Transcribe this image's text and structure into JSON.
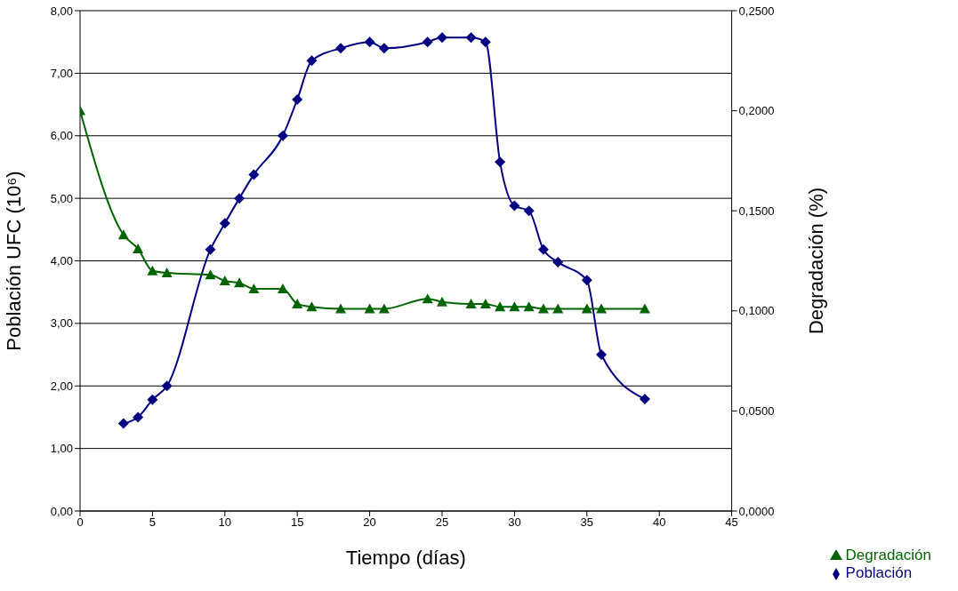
{
  "chart_data": {
    "type": "line",
    "xlabel": "Tiempo (días)",
    "ylabel": "Población UFC (10⁶)",
    "y2label": "Degradación (%)",
    "xlim": [
      0,
      45
    ],
    "xticks": [
      0,
      5,
      10,
      15,
      20,
      25,
      30,
      35,
      40,
      45
    ],
    "ylim": [
      0,
      8
    ],
    "yticks": [
      {
        "value": 0,
        "label": "0,00"
      },
      {
        "value": 1,
        "label": "1,00"
      },
      {
        "value": 2,
        "label": "2,00"
      },
      {
        "value": 3,
        "label": "3,00"
      },
      {
        "value": 4,
        "label": "4,00"
      },
      {
        "value": 5,
        "label": "5,00"
      },
      {
        "value": 6,
        "label": "6,00"
      },
      {
        "value": 7,
        "label": "7,00"
      },
      {
        "value": 8,
        "label": "8,00"
      }
    ],
    "y2lim": [
      0,
      0.25
    ],
    "y2ticks": [
      {
        "value": 0,
        "label": "0,0000"
      },
      {
        "value": 0.05,
        "label": "0,0500"
      },
      {
        "value": 0.1,
        "label": "0,1000"
      },
      {
        "value": 0.15,
        "label": "0,1500"
      },
      {
        "value": 0.2,
        "label": "0,2000"
      },
      {
        "value": 0.25,
        "label": "0,2500"
      }
    ],
    "grid": "y",
    "legend": "bottom right",
    "series": [
      {
        "name": "Población",
        "color": "#000080",
        "marker": "diamond",
        "x": [
          3,
          4,
          5,
          6,
          9,
          10,
          11,
          12,
          14,
          15,
          16,
          18,
          20,
          21,
          24,
          25,
          27,
          28,
          29,
          30,
          31,
          32,
          33,
          35,
          36,
          39
        ],
        "values": [
          1.4,
          1.5,
          1.78,
          2.0,
          4.18,
          4.6,
          5.0,
          5.38,
          6.0,
          6.58,
          7.2,
          7.4,
          7.5,
          7.4,
          7.5,
          7.57,
          7.57,
          7.5,
          5.58,
          4.88,
          4.8,
          4.18,
          3.98,
          3.69,
          2.5,
          1.79
        ]
      },
      {
        "name": "Degradación",
        "color": "#006400",
        "marker": "triangle",
        "axis": "y2",
        "x": [
          0,
          3,
          4,
          5,
          6,
          9,
          10,
          11,
          12,
          14,
          15,
          16,
          18,
          20,
          21,
          24,
          25,
          27,
          28,
          29,
          30,
          31,
          32,
          33,
          35,
          36,
          39
        ],
        "values": [
          0.2,
          0.138,
          0.131,
          0.12,
          0.119,
          0.118,
          0.115,
          0.114,
          0.111,
          0.111,
          0.1035,
          0.102,
          0.101,
          0.101,
          0.101,
          0.106,
          0.1045,
          0.1035,
          0.1035,
          0.102,
          0.102,
          0.102,
          0.101,
          0.101,
          0.101,
          0.101,
          0.101
        ]
      }
    ]
  }
}
